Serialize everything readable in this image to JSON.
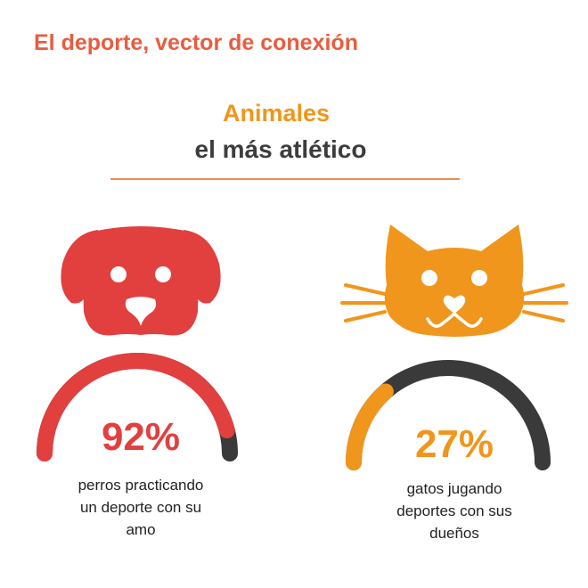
{
  "header": {
    "title": "El deporte, vector de conexión"
  },
  "section": {
    "title": "Animales",
    "subtitle": "el más atlético"
  },
  "colors": {
    "accent_orange_red": "#e85d3f",
    "dog_red": "#e23f3f",
    "cat_orange": "#f0961c",
    "remainder_dark": "#3a3a3a",
    "text_dark": "#3c3c3c"
  },
  "chart_data": [
    {
      "type": "gauge",
      "icon": "dog-face-icon",
      "value": 92,
      "max": 100,
      "value_label": "92%",
      "caption_lines": [
        "perros practicando",
        "un deporte con su",
        "amo"
      ],
      "fill_color": "#e23f3f",
      "remainder_color": "#3a3a3a"
    },
    {
      "type": "gauge",
      "icon": "cat-face-icon",
      "value": 27,
      "max": 100,
      "value_label": "27%",
      "caption_lines": [
        "gatos jugando",
        "deportes con sus",
        "dueños"
      ],
      "fill_color": "#f0961c",
      "remainder_color": "#3a3a3a"
    }
  ]
}
